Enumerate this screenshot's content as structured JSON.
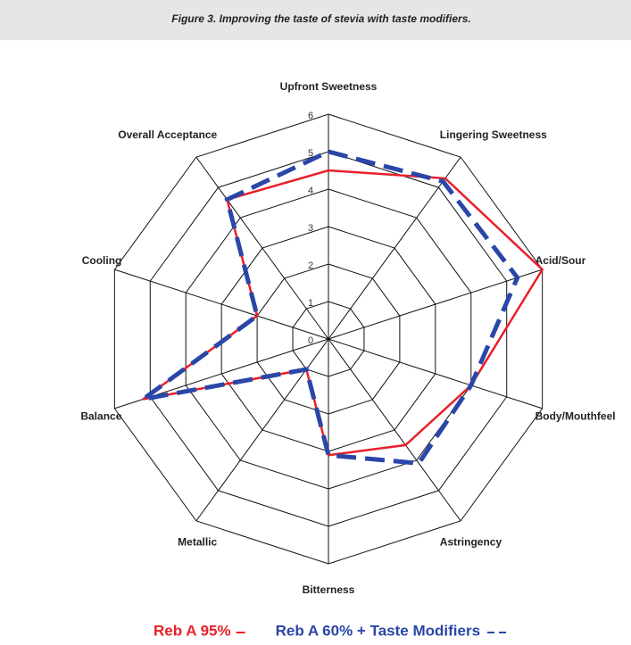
{
  "chart_data": {
    "type": "radar",
    "title": "Figure 3. Improving the taste of stevia with taste modifiers.",
    "categories": [
      "Upfront Sweetness",
      "Lingering Sweetness",
      "Acid/Sour",
      "Body/Mouthfeel",
      "Astringency",
      "Bitterness",
      "Metallic",
      "Balance",
      "Cooling",
      "Overall Acceptance"
    ],
    "rlim": [
      0,
      6
    ],
    "rticks": [
      0,
      1,
      2,
      3,
      4,
      5,
      6
    ],
    "series": [
      {
        "name": "Reb A 95%",
        "color": "#e8202a",
        "dash": false,
        "values": [
          4.5,
          5.3,
          6,
          4,
          3.5,
          3.1,
          1,
          5.2,
          2,
          4.6
        ]
      },
      {
        "name": "Reb A 60% + Taste Modifiers",
        "color": "#2a46a8",
        "dash": true,
        "values": [
          5,
          5.2,
          5.3,
          4,
          4.1,
          3.1,
          1,
          5.2,
          2,
          4.6
        ]
      }
    ]
  }
}
